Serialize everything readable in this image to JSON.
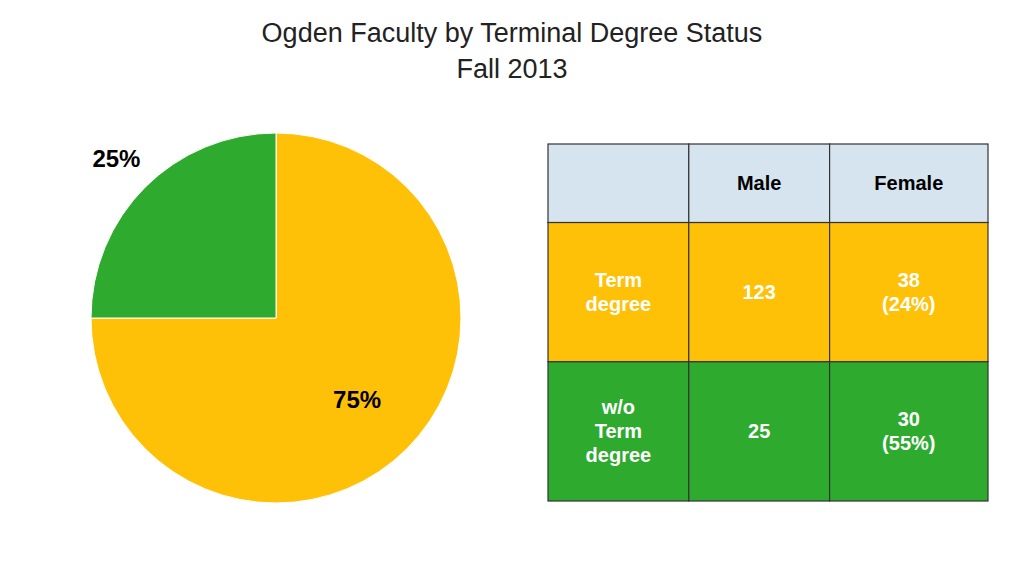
{
  "chart_data": [
    {
      "type": "pie",
      "title": "Ogden Faculty by Terminal Degree Status",
      "subtitle": "Fall 2013",
      "values": [
        75,
        25
      ],
      "value_labels": [
        "75%",
        "25%"
      ],
      "colors": [
        "#FFC107",
        "#2EAA2E"
      ],
      "data_labels": true
    },
    {
      "type": "table",
      "categories": [
        "Term\ndegree",
        "w/o\nTerm\ndegree"
      ],
      "series": [
        {
          "name": "Male",
          "values": [
            123,
            25
          ]
        },
        {
          "name": "Female",
          "values": [
            38,
            30
          ],
          "value_labels": [
            "38\n(24%)",
            "30\n(55%)"
          ]
        }
      ],
      "color": "#D6E4F0",
      "colors": [
        "#FFC107",
        "#2EAA2E"
      ]
    }
  ]
}
